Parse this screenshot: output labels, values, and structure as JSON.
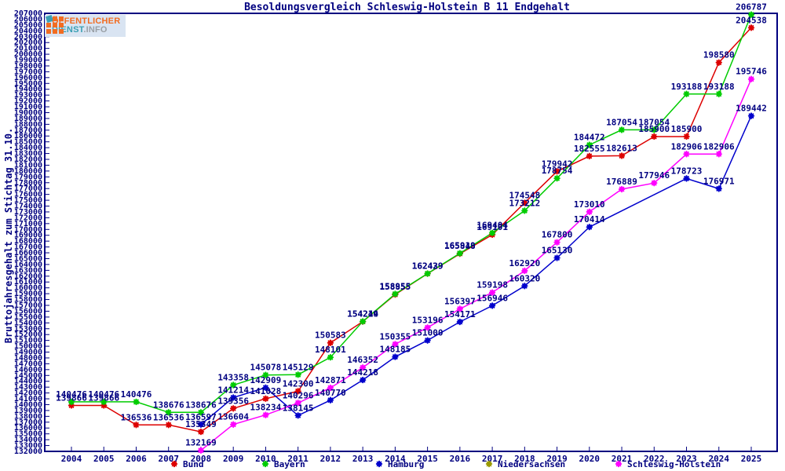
{
  "logo": {
    "line1": "ÖFFENTLICHER",
    "line2": "DIENST",
    "line2b": ".INFO"
  },
  "chart_data": {
    "type": "line",
    "title": "Besoldungsvergleich Schleswig-Holstein B 11 Endgehalt",
    "ylabel": "Bruttojahresgehalt zum Stichtag 31.10.",
    "xlabel": "",
    "ylim": [
      132000,
      207000
    ],
    "ytick_step": 1000,
    "grid": false,
    "legend_position": "bottom",
    "axis_color": "#000080",
    "label_color": "#000080",
    "years": [
      2004,
      2005,
      2006,
      2007,
      2008,
      2009,
      2010,
      2011,
      2012,
      2013,
      2014,
      2015,
      2016,
      2017,
      2018,
      2019,
      2020,
      2021,
      2022,
      2023,
      2024,
      2025
    ],
    "series": [
      {
        "name": "Bund",
        "color": "#dd0000",
        "data": [
          [
            2004,
            139866
          ],
          [
            2005,
            139866
          ],
          [
            2006,
            136536
          ],
          [
            2007,
            136536
          ],
          [
            2008,
            135349
          ],
          [
            2009,
            139356
          ],
          [
            2010,
            141028
          ],
          [
            2011,
            142300
          ],
          [
            2012,
            150583
          ],
          [
            2013,
            154214
          ],
          [
            2014,
            158855
          ],
          [
            2015,
            162429
          ],
          [
            2016,
            165848
          ],
          [
            2017,
            169101
          ],
          [
            2018,
            174548
          ],
          [
            2019,
            179942
          ],
          [
            2020,
            182555
          ],
          [
            2021,
            182613
          ],
          [
            2022,
            185900
          ],
          [
            2023,
            185900
          ],
          [
            2024,
            198580
          ],
          [
            2025,
            204538
          ]
        ]
      },
      {
        "name": "Bayern",
        "color": "#00cc00",
        "data": [
          [
            2004,
            140476
          ],
          [
            2005,
            140476
          ],
          [
            2006,
            140476
          ],
          [
            2007,
            138676
          ],
          [
            2008,
            138676
          ],
          [
            2009,
            143358
          ],
          [
            2010,
            145078
          ],
          [
            2011,
            145129
          ],
          [
            2012,
            148101
          ],
          [
            2013,
            154249
          ],
          [
            2014,
            158955
          ],
          [
            2015,
            162439
          ],
          [
            2016,
            165919
          ],
          [
            2017,
            169404
          ],
          [
            2018,
            173212
          ],
          [
            2019,
            178754
          ],
          [
            2020,
            184472
          ],
          [
            2021,
            187054
          ],
          [
            2022,
            187054
          ],
          [
            2023,
            193188
          ],
          [
            2024,
            193188
          ],
          [
            2025,
            206787
          ]
        ]
      },
      {
        "name": "Hamburg",
        "color": "#0000cc",
        "data": [
          [
            2008,
            136597
          ],
          [
            2009,
            141214
          ],
          [
            2010,
            142909
          ],
          [
            2011,
            138145
          ],
          [
            2012,
            140770
          ],
          [
            2013,
            144218
          ],
          [
            2014,
            148185
          ],
          [
            2015,
            151000
          ],
          [
            2016,
            154171
          ],
          [
            2017,
            156946
          ],
          [
            2018,
            160320
          ],
          [
            2019,
            165130
          ],
          [
            2020,
            170414
          ],
          [
            2023,
            178723
          ],
          [
            2024,
            176971
          ],
          [
            2025,
            189442
          ]
        ]
      },
      {
        "name": "Niedersachsen",
        "color": "#999900",
        "data": []
      },
      {
        "name": "Schleswig-Holstein",
        "color": "#ff00ff",
        "data": [
          [
            2008,
            132169
          ],
          [
            2009,
            136604
          ],
          [
            2010,
            138234
          ],
          [
            2011,
            140296
          ],
          [
            2012,
            142871
          ],
          [
            2013,
            146352
          ],
          [
            2014,
            150355
          ],
          [
            2015,
            153196
          ],
          [
            2016,
            156397
          ],
          [
            2017,
            159198
          ],
          [
            2018,
            162920
          ],
          [
            2019,
            167800
          ],
          [
            2020,
            173010
          ],
          [
            2021,
            176889
          ],
          [
            2022,
            177946
          ],
          [
            2023,
            182906
          ],
          [
            2024,
            182906
          ],
          [
            2025,
            195746
          ]
        ]
      }
    ]
  }
}
